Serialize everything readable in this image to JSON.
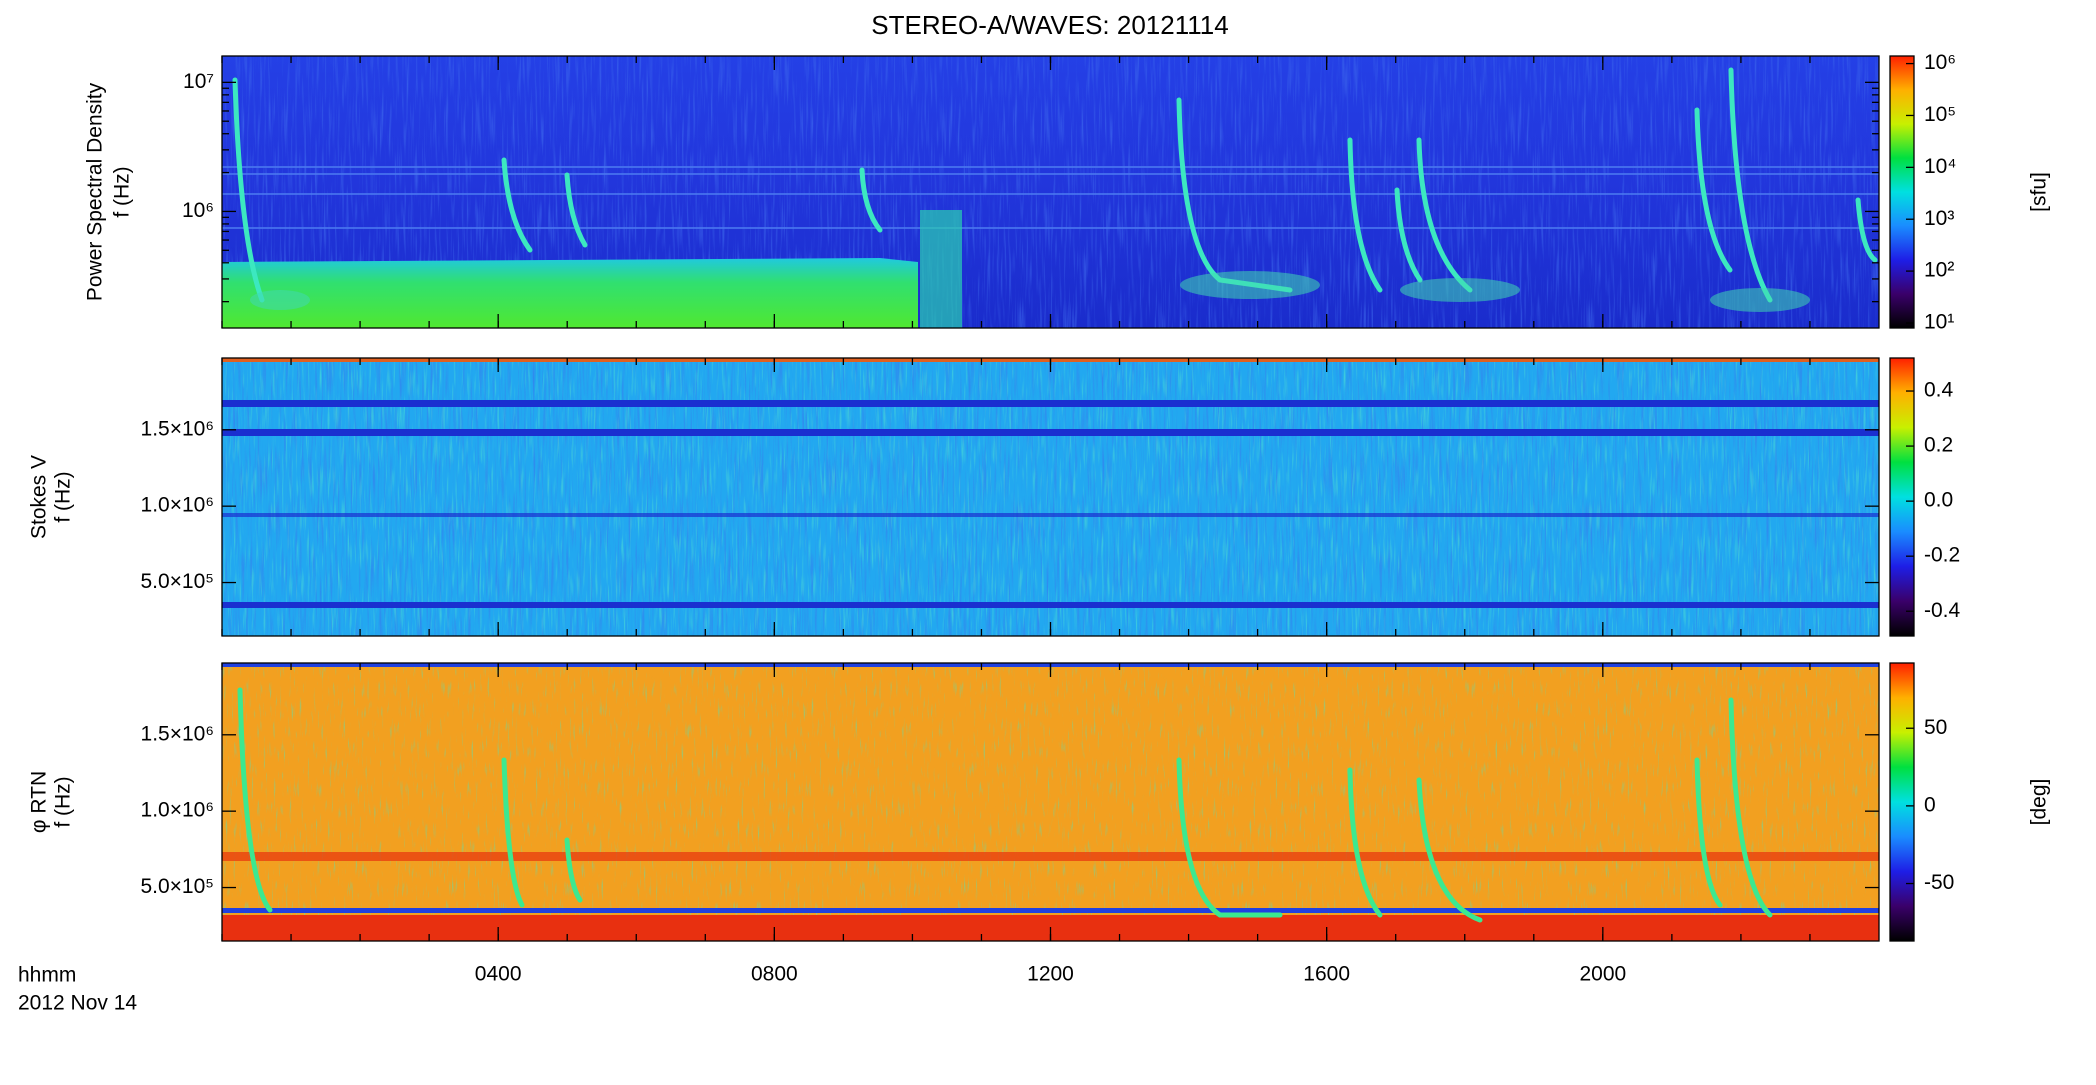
{
  "title": "STEREO-A/WAVES: 20121114",
  "x_axis_label": "hhmm",
  "x_date": "2012 Nov 14",
  "chart_data": [
    {
      "type": "heatmap",
      "ylabel": [
        "Power Spectral Density",
        "f (Hz)"
      ],
      "xlim": [
        0,
        24
      ],
      "ylim": [
        125000,
        16000000
      ],
      "log_y": true,
      "yticks": [
        {
          "value": 1000000,
          "label": "10⁶"
        },
        {
          "value": 10000000,
          "label": "10⁷"
        }
      ],
      "colorbar": {
        "label": "[sfu]",
        "log": true,
        "lim": [
          8,
          1400000
        ],
        "ticks": [
          {
            "value": 10,
            "label": "10¹"
          },
          {
            "value": 100,
            "label": "10²"
          },
          {
            "value": 1000,
            "label": "10³"
          },
          {
            "value": 10000,
            "label": "10⁴"
          },
          {
            "value": 100000,
            "label": "10⁵"
          },
          {
            "value": 1000000,
            "label": "10⁶"
          }
        ],
        "colormap": [
          "#000000",
          "#3a006a",
          "#1e1ee6",
          "#1a8cff",
          "#00e0e0",
          "#00e040",
          "#c8f000",
          "#ffb000",
          "#ff2000"
        ]
      }
    },
    {
      "type": "heatmap",
      "ylabel": [
        "Stokes V",
        "f (Hz)"
      ],
      "xlim": [
        0,
        24
      ],
      "ylim": [
        150000,
        1970000
      ],
      "log_y": false,
      "yticks": [
        {
          "value": 500000,
          "label": "5.0×10⁵"
        },
        {
          "value": 1000000,
          "label": "1.0×10⁶"
        },
        {
          "value": 1500000,
          "label": "1.5×10⁶"
        }
      ],
      "colorbar": {
        "label": "",
        "log": false,
        "lim": [
          -0.49,
          0.52
        ],
        "ticks": [
          -0.4,
          -0.2,
          {
            "value": 0,
            "label": "0.0"
          },
          0.2,
          0.4
        ],
        "colormap": [
          "#000000",
          "#3a006a",
          "#1e1ee6",
          "#1a8cff",
          "#00e0e0",
          "#00e040",
          "#c8f000",
          "#ffb000",
          "#ff2000"
        ]
      }
    },
    {
      "type": "heatmap",
      "ylabel": [
        "φ RTN",
        "f (Hz)"
      ],
      "xlim": [
        0,
        24
      ],
      "xticks": [
        {
          "value": 4,
          "label": "0400"
        },
        {
          "value": 8,
          "label": "0800"
        },
        {
          "value": 12,
          "label": "1200"
        },
        {
          "value": 16,
          "label": "1600"
        },
        {
          "value": 20,
          "label": "2000"
        }
      ],
      "ylim": [
        150000,
        1970000
      ],
      "log_y": false,
      "yticks": [
        {
          "value": 500000,
          "label": "5.0×10⁵"
        },
        {
          "value": 1000000,
          "label": "1.0×10⁶"
        },
        {
          "value": 1500000,
          "label": "1.5×10⁶"
        }
      ],
      "colorbar": {
        "label": "[deg]",
        "log": false,
        "lim": [
          -87,
          92
        ],
        "ticks": [
          -50,
          0,
          50
        ],
        "colormap": [
          "#000000",
          "#3a006a",
          "#1e1ee6",
          "#1a8cff",
          "#00e0e0",
          "#00e040",
          "#c8f000",
          "#ffb000",
          "#ff2000"
        ]
      }
    }
  ]
}
